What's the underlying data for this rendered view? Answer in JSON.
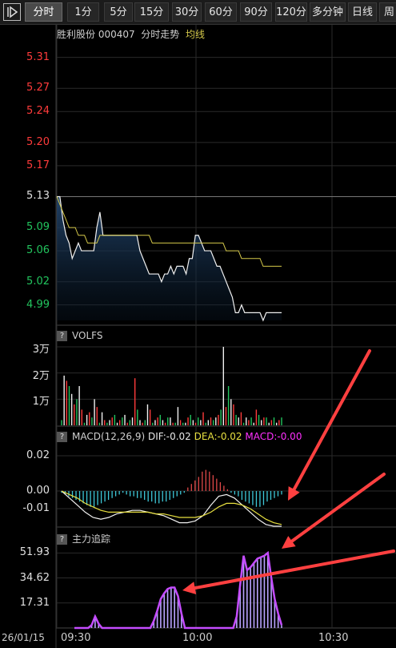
{
  "toolbar": {
    "tabs": [
      {
        "label": "分时",
        "active": true
      },
      {
        "label": "1分",
        "active": false
      },
      {
        "label": "5分",
        "active": false
      },
      {
        "label": "15分",
        "active": false
      },
      {
        "label": "30分",
        "active": false
      },
      {
        "label": "60分",
        "active": false
      },
      {
        "label": "90分",
        "active": false
      },
      {
        "label": "120分",
        "active": false
      },
      {
        "label": "多分钟",
        "active": false
      },
      {
        "label": "日线",
        "active": false
      },
      {
        "label": "周",
        "active": false
      }
    ]
  },
  "header": {
    "stock_name": "胜利股份",
    "stock_code": "000407",
    "chart_label": "分时走势",
    "avg_label": "均线"
  },
  "colors": {
    "up": "#ff3b3b",
    "down": "#22c55e",
    "avg": "#d4c84a",
    "macd_pos": "#e04848",
    "macd_neg": "#3ec8d8",
    "tracker": "#c44cff",
    "arrow": "#ff4040",
    "grid": "#2a2a2a"
  },
  "chart_data": [
    {
      "type": "line",
      "name": "price",
      "yticks": [
        "5.31",
        "5.27",
        "5.24",
        "5.20",
        "5.17",
        "5.13",
        "5.09",
        "5.06",
        "5.02",
        "4.99"
      ],
      "ylim": [
        4.97,
        5.32
      ],
      "prev_close": 5.13,
      "x_range": [
        "09:30",
        "11:00"
      ],
      "series": [
        {
          "name": "价格",
          "values": [
            5.13,
            5.13,
            5.1,
            5.08,
            5.07,
            5.05,
            5.06,
            5.07,
            5.06,
            5.06,
            5.06,
            5.06,
            5.06,
            5.09,
            5.11,
            5.08,
            5.08,
            5.08,
            5.08,
            5.08,
            5.08,
            5.08,
            5.08,
            5.08,
            5.08,
            5.08,
            5.08,
            5.06,
            5.05,
            5.04,
            5.03,
            5.03,
            5.03,
            5.03,
            5.02,
            5.03,
            5.03,
            5.04,
            5.03,
            5.04,
            5.04,
            5.04,
            5.03,
            5.05,
            5.05,
            5.08,
            5.08,
            5.07,
            5.06,
            5.06,
            5.06,
            5.05,
            5.04,
            5.04,
            5.03,
            5.02,
            5.01,
            5.0,
            4.98,
            4.98,
            4.99,
            4.98,
            4.98,
            4.98,
            4.98,
            4.98,
            4.98,
            4.97,
            4.98,
            4.98,
            4.98,
            4.98,
            4.98,
            4.98
          ]
        },
        {
          "name": "均线",
          "values": [
            5.13,
            5.12,
            5.11,
            5.1,
            5.09,
            5.09,
            5.09,
            5.08,
            5.08,
            5.08,
            5.07,
            5.07,
            5.07,
            5.07,
            5.08,
            5.08,
            5.08,
            5.08,
            5.08,
            5.08,
            5.08,
            5.08,
            5.08,
            5.08,
            5.08,
            5.08,
            5.08,
            5.08,
            5.08,
            5.08,
            5.08,
            5.07,
            5.07,
            5.07,
            5.07,
            5.07,
            5.07,
            5.07,
            5.07,
            5.07,
            5.07,
            5.07,
            5.07,
            5.07,
            5.07,
            5.07,
            5.07,
            5.07,
            5.07,
            5.07,
            5.07,
            5.07,
            5.07,
            5.07,
            5.07,
            5.06,
            5.06,
            5.06,
            5.06,
            5.06,
            5.05,
            5.05,
            5.05,
            5.05,
            5.05,
            5.05,
            5.05,
            5.04,
            5.04,
            5.04,
            5.04,
            5.04,
            5.04,
            5.04
          ]
        }
      ]
    },
    {
      "type": "bar",
      "name": "VOLFS",
      "title": "VOLFS",
      "yticks": [
        "3万",
        "2万",
        "1万"
      ],
      "ylim": [
        0,
        30000
      ],
      "values": [
        2000,
        19000,
        17000,
        15000,
        12000,
        8000,
        10000,
        15000,
        6000,
        1000,
        4000,
        5000,
        3000,
        10000,
        7000,
        1000,
        5000,
        2000,
        1000,
        2000,
        3000,
        4000,
        1000,
        2000,
        3000,
        4000,
        1000,
        2000,
        3000,
        18000,
        6000,
        2000,
        1000,
        2000,
        8000,
        6000,
        1000,
        2000,
        3000,
        4000,
        2000,
        1000,
        3000,
        3000,
        1000,
        1000,
        7000,
        2000,
        1000,
        1000,
        3000,
        4000,
        2000,
        1000,
        3000,
        2000,
        5000,
        1000,
        2000,
        3000,
        2000,
        3000,
        4000,
        6000,
        30000,
        7000,
        15000,
        10000,
        8000,
        4000,
        3000,
        5000,
        1000,
        3000,
        2000,
        3000,
        1000,
        6000,
        4000,
        2000,
        3000,
        3000,
        1000,
        2000,
        3000,
        1000,
        2000,
        3000
      ]
    },
    {
      "type": "bar",
      "name": "MACD",
      "title": "MACD(12,26,9)",
      "dif_label": "DIF:-0.02",
      "dea_label": "DEA:-0.02",
      "macd_label": "MACD:-0.00",
      "yticks": [
        "0.02",
        "0.00",
        "-0.01"
      ],
      "ylim": [
        -0.02,
        0.025
      ],
      "series": [
        {
          "name": "MACD",
          "values": [
            -0.001,
            -0.002,
            -0.003,
            -0.004,
            -0.005,
            -0.006,
            -0.007,
            -0.008,
            -0.009,
            -0.009,
            -0.008,
            -0.007,
            -0.006,
            -0.005,
            -0.004,
            -0.003,
            -0.002,
            -0.001,
            -0.002,
            -0.003,
            -0.003,
            -0.004,
            -0.004,
            -0.005,
            -0.006,
            -0.006,
            -0.007,
            -0.007,
            -0.006,
            -0.006,
            -0.005,
            -0.004,
            -0.003,
            -0.002,
            -0.001,
            0.002,
            0.004,
            0.006,
            0.008,
            0.011,
            0.012,
            0.011,
            0.009,
            0.007,
            0.005,
            0.003,
            0.001,
            -0.001,
            -0.002,
            -0.003,
            -0.005,
            -0.006,
            -0.007,
            -0.008,
            -0.009,
            -0.009,
            -0.008,
            -0.006,
            -0.005,
            -0.004,
            -0.003,
            -0.002
          ]
        },
        {
          "name": "DIF",
          "values": [
            0,
            -0.004,
            -0.008,
            -0.012,
            -0.015,
            -0.016,
            -0.015,
            -0.013,
            -0.012,
            -0.011,
            -0.011,
            -0.012,
            -0.013,
            -0.014,
            -0.016,
            -0.018,
            -0.018,
            -0.017,
            -0.014,
            -0.008,
            -0.003,
            -0.002,
            -0.004,
            -0.008,
            -0.012,
            -0.016,
            -0.019,
            -0.02,
            -0.02
          ]
        },
        {
          "name": "DEA",
          "values": [
            0,
            -0.002,
            -0.004,
            -0.007,
            -0.009,
            -0.011,
            -0.012,
            -0.012,
            -0.012,
            -0.012,
            -0.012,
            -0.012,
            -0.013,
            -0.013,
            -0.014,
            -0.015,
            -0.015,
            -0.015,
            -0.014,
            -0.012,
            -0.009,
            -0.007,
            -0.007,
            -0.008,
            -0.01,
            -0.013,
            -0.016,
            -0.018,
            -0.019
          ]
        }
      ]
    },
    {
      "type": "area",
      "name": "主力追踪",
      "title": "主力追踪",
      "yticks": [
        "51.93",
        "34.62",
        "17.31"
      ],
      "ylim": [
        0,
        56
      ],
      "values": [
        0,
        0,
        0,
        0,
        0,
        2,
        8,
        3,
        0,
        0,
        0,
        0,
        0,
        0,
        0,
        0,
        0,
        0,
        0,
        0,
        0,
        0,
        0,
        5,
        12,
        20,
        24,
        27,
        28,
        28,
        22,
        10,
        0,
        0,
        0,
        0,
        0,
        0,
        0,
        0,
        0,
        0,
        0,
        0,
        0,
        0,
        0,
        8,
        30,
        50,
        40,
        42,
        45,
        48,
        49,
        50,
        52,
        35,
        20,
        10,
        2
      ]
    }
  ],
  "xaxis": {
    "date": "26/01/15",
    "ticks": [
      "09:30",
      "10:00",
      "10:30"
    ]
  }
}
